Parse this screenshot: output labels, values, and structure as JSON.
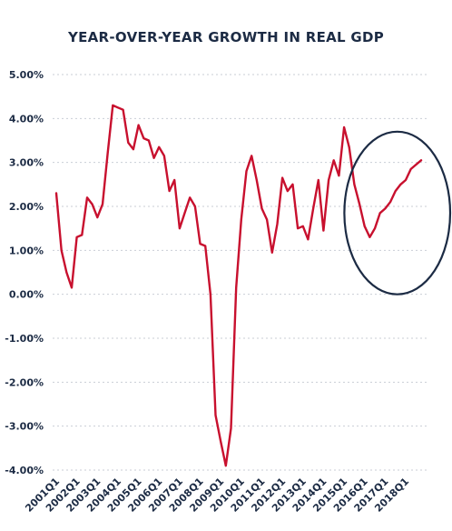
{
  "chart_data": {
    "type": "line",
    "title": "YEAR-OVER-YEAR GROWTH IN REAL GDP",
    "xlabel": "",
    "ylabel": "",
    "ylim": [
      -4.0,
      5.0
    ],
    "y_ticks": [
      "5.00%",
      "4.00%",
      "3.00%",
      "2.00%",
      "1.00%",
      "0.00%",
      "-1.00%",
      "-2.00%",
      "-3.00%",
      "-4.00%"
    ],
    "y_tick_values": [
      5,
      4,
      3,
      2,
      1,
      0,
      -1,
      -2,
      -3,
      -4
    ],
    "x_tick_labels": [
      "2001Q1",
      "2002Q1",
      "2003Q1",
      "2004Q1",
      "2005Q1",
      "2006Q1",
      "2007Q1",
      "2008Q1",
      "2009Q1",
      "2010Q1",
      "2011Q1",
      "2012Q1",
      "2013Q1",
      "2014Q1",
      "2015Q1",
      "2016Q1",
      "2017Q1",
      "2018Q1"
    ],
    "grid": "horizontal-dashed",
    "line_color": "#c8102e",
    "annotation": {
      "shape": "ellipse",
      "color": "#1c2b44",
      "from_period": "2016Q2",
      "to_period": "2018Q4"
    },
    "series": [
      {
        "x": [
          "2001Q1",
          "2001Q2",
          "2001Q3",
          "2001Q4",
          "2002Q1",
          "2002Q2",
          "2002Q3",
          "2002Q4",
          "2003Q1",
          "2003Q2",
          "2003Q3",
          "2003Q4",
          "2004Q1",
          "2004Q2",
          "2004Q3",
          "2004Q4",
          "2005Q1",
          "2005Q2",
          "2005Q3",
          "2005Q4",
          "2006Q1",
          "2006Q2",
          "2006Q3",
          "2006Q4",
          "2007Q1",
          "2007Q2",
          "2007Q3",
          "2007Q4",
          "2008Q1",
          "2008Q2",
          "2008Q3",
          "2008Q4",
          "2009Q1",
          "2009Q2",
          "2009Q3",
          "2009Q4",
          "2010Q1",
          "2010Q2",
          "2010Q3",
          "2010Q4",
          "2011Q1",
          "2011Q2",
          "2011Q3",
          "2011Q4",
          "2012Q1",
          "2012Q2",
          "2012Q3",
          "2012Q4",
          "2013Q1",
          "2013Q2",
          "2013Q3",
          "2013Q4",
          "2014Q1",
          "2014Q2",
          "2014Q3",
          "2014Q4",
          "2015Q1",
          "2015Q2",
          "2015Q3",
          "2015Q4",
          "2016Q1",
          "2016Q2",
          "2016Q3",
          "2016Q4",
          "2017Q1",
          "2017Q2",
          "2017Q3",
          "2017Q4",
          "2018Q1",
          "2018Q2",
          "2018Q3",
          "2018Q4"
        ],
        "values": [
          2.3,
          1.0,
          0.5,
          0.15,
          1.3,
          1.35,
          2.2,
          2.05,
          1.75,
          2.05,
          3.2,
          4.3,
          4.25,
          4.2,
          3.45,
          3.3,
          3.85,
          3.55,
          3.5,
          3.1,
          3.35,
          3.15,
          2.35,
          2.6,
          1.5,
          1.85,
          2.2,
          2.0,
          1.15,
          1.1,
          0.0,
          -2.75,
          -3.35,
          -3.9,
          -3.05,
          0.15,
          1.7,
          2.8,
          3.15,
          2.6,
          1.95,
          1.7,
          0.95,
          1.6,
          2.65,
          2.35,
          2.5,
          1.5,
          1.55,
          1.25,
          1.95,
          2.6,
          1.45,
          2.6,
          3.05,
          2.7,
          3.8,
          3.35,
          2.5,
          2.05,
          1.55,
          1.3,
          1.5,
          1.85,
          1.95,
          2.1,
          2.35,
          2.5,
          2.6,
          2.85,
          2.95,
          3.05
        ]
      }
    ]
  }
}
